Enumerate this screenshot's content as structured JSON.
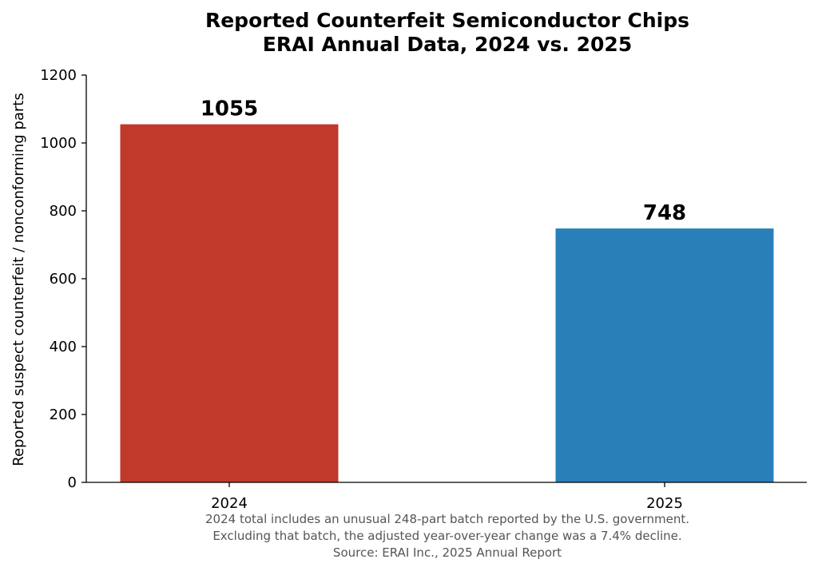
{
  "chart_data": {
    "type": "bar",
    "title_lines": [
      "Reported Counterfeit Semiconductor Chips",
      "ERAI Annual Data, 2024 vs. 2025"
    ],
    "xlabel": "",
    "ylabel": "Reported suspect counterfeit / nonconforming parts",
    "categories": [
      "2024",
      "2025"
    ],
    "values": [
      1055,
      748
    ],
    "data_labels": [
      "1055",
      "748"
    ],
    "bar_colors": [
      "#c0392b",
      "#2980b9"
    ],
    "ylim": [
      0,
      1200
    ],
    "yticks": [
      0,
      200,
      400,
      600,
      800,
      1000,
      1200
    ],
    "grid": false,
    "legend": "none",
    "footnote_lines": [
      "2024 total includes an unusual 248-part batch reported by the U.S. government.",
      "Excluding that batch, the adjusted year-over-year change was a 7.4% decline.",
      "Source: ERAI Inc., 2025 Annual Report"
    ]
  }
}
